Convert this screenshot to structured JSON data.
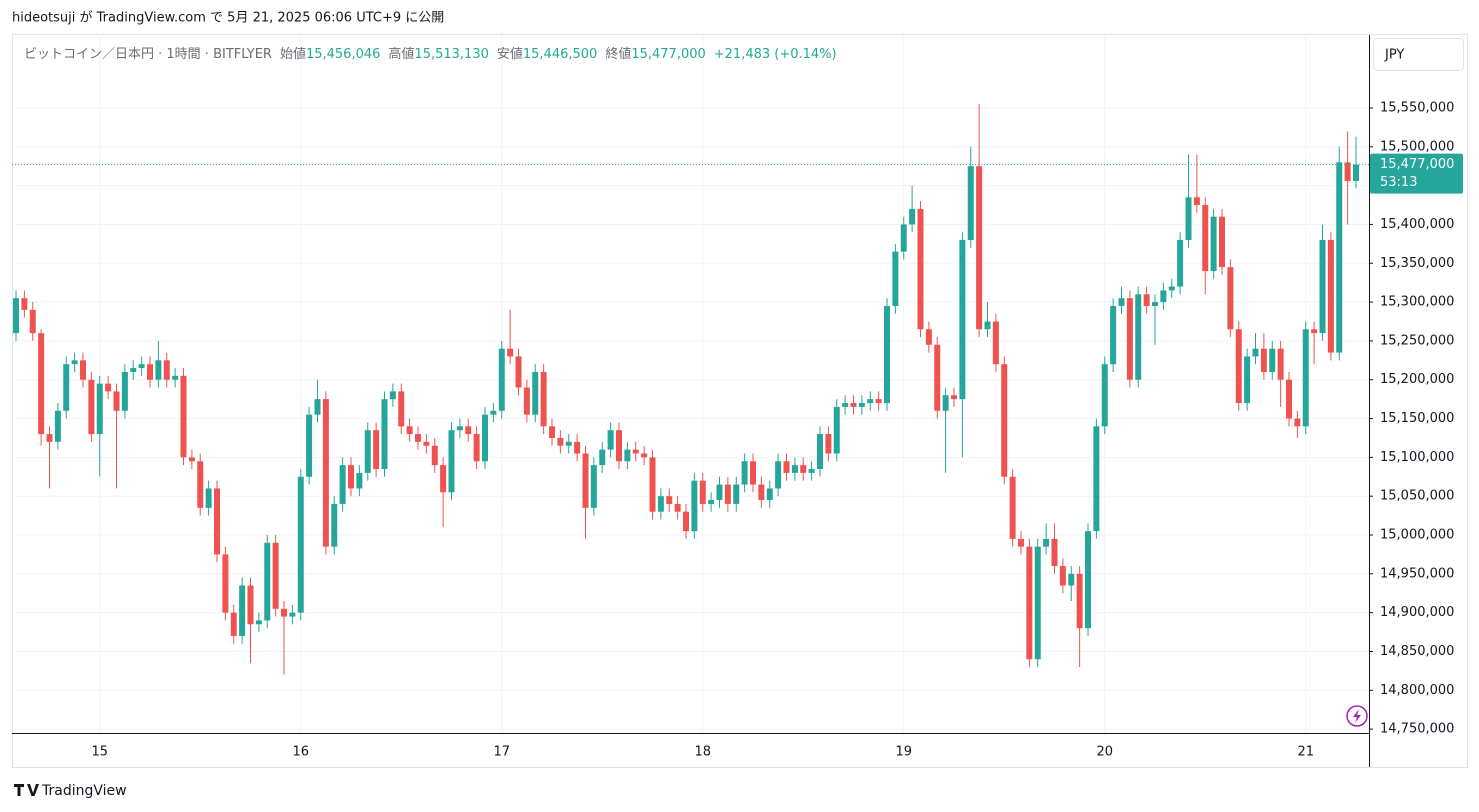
{
  "header": {
    "publisher": "hideotsuji が TradingView.com で 5月 21, 2025 06:06 UTC+9 に公開",
    "footer": "TradingView"
  },
  "chart_data": {
    "type": "candlestick",
    "title": "ビットコイン／日本円 · 1時間 · BITFLYER",
    "ohlc_labels": [
      {
        "label": "始値",
        "value": "15,456,046"
      },
      {
        "label": "高値",
        "value": "15,513,130"
      },
      {
        "label": "安値",
        "value": "15,446,500"
      },
      {
        "label": "終値",
        "value": "15,477,000"
      }
    ],
    "change": "+21,483 (+0.14%)",
    "currency": "JPY",
    "last_price_label": "15,477,000",
    "countdown": "53:13",
    "up_color": "#26a69a",
    "down_color": "#ef5350",
    "grid": true,
    "ylim": [
      14745000,
      15644000
    ],
    "yticks": [
      {
        "value": 14750000,
        "label": "14,750,000"
      },
      {
        "value": 14800000,
        "label": "14,800,000"
      },
      {
        "value": 14850000,
        "label": "14,850,000"
      },
      {
        "value": 14900000,
        "label": "14,900,000"
      },
      {
        "value": 14950000,
        "label": "14,950,000"
      },
      {
        "value": 15000000,
        "label": "15,000,000"
      },
      {
        "value": 15050000,
        "label": "15,050,000"
      },
      {
        "value": 15100000,
        "label": "15,100,000"
      },
      {
        "value": 15150000,
        "label": "15,150,000"
      },
      {
        "value": 15200000,
        "label": "15,200,000"
      },
      {
        "value": 15250000,
        "label": "15,250,000"
      },
      {
        "value": 15300000,
        "label": "15,300,000"
      },
      {
        "value": 15350000,
        "label": "15,350,000"
      },
      {
        "value": 15400000,
        "label": "15,400,000"
      },
      {
        "value": 15450000,
        "label": "15,450,000"
      },
      {
        "value": 15500000,
        "label": "15,500,000"
      },
      {
        "value": 15550000,
        "label": "15,550,000"
      }
    ],
    "xticks": [
      {
        "value": 10,
        "label": "15"
      },
      {
        "value": 34,
        "label": "16"
      },
      {
        "value": 58,
        "label": "17"
      },
      {
        "value": 82,
        "label": "18"
      },
      {
        "value": 106,
        "label": "19"
      },
      {
        "value": 130,
        "label": "20"
      },
      {
        "value": 154,
        "label": "21"
      }
    ],
    "open": [
      15260000,
      15305000,
      15290000,
      15260000,
      15130000,
      15120000,
      15160000,
      15220000,
      15225000,
      15200000,
      15130000,
      15195000,
      15185000,
      15160000,
      15210000,
      15215000,
      15220000,
      15200000,
      15225000,
      15200000,
      15205000,
      15100000,
      15095000,
      15035000,
      15060000,
      14975000,
      14900000,
      14870000,
      14935000,
      14885000,
      14890000,
      14990000,
      14905000,
      14895000,
      14900000,
      15075000,
      15155000,
      15175000,
      14985000,
      15040000,
      15090000,
      15060000,
      15080000,
      15135000,
      15085000,
      15175000,
      15185000,
      15140000,
      15130000,
      15120000,
      15115000,
      15090000,
      15055000,
      15135000,
      15140000,
      15130000,
      15095000,
      15155000,
      15160000,
      15240000,
      15230000,
      15190000,
      15155000,
      15210000,
      15140000,
      15125000,
      15115000,
      15120000,
      15105000,
      15035000,
      15090000,
      15110000,
      15135000,
      15095000,
      15110000,
      15105000,
      15100000,
      15030000,
      15050000,
      15040000,
      15030000,
      15005000,
      15070000,
      15040000,
      15045000,
      15065000,
      15040000,
      15065000,
      15095000,
      15065000,
      15045000,
      15060000,
      15095000,
      15080000,
      15090000,
      15080000,
      15085000,
      15130000,
      15105000,
      15165000,
      15170000,
      15165000,
      15170000,
      15175000,
      15170000,
      15295000,
      15365000,
      15400000,
      15420000,
      15265000,
      15245000,
      15160000,
      15180000,
      15175000,
      15380000,
      15475000,
      15265000,
      15275000,
      15220000,
      15075000,
      14995000,
      14985000,
      14840000,
      14985000,
      14995000,
      14960000,
      14935000,
      14950000,
      14880000,
      15005000,
      15140000,
      15220000,
      15295000,
      15305000,
      15200000,
      15310000,
      15295000,
      15300000,
      15315000,
      15320000,
      15380000,
      15435000,
      15425000,
      15340000,
      15410000,
      15345000,
      15265000,
      15170000,
      15230000,
      15240000,
      15210000,
      15240000,
      15200000,
      15150000,
      15140000,
      15265000,
      15260000,
      15380000,
      15235000,
      15480000,
      15456046
    ],
    "high": [
      15315000,
      15315000,
      15300000,
      15265000,
      15140000,
      15170000,
      15230000,
      15235000,
      15235000,
      15210000,
      15205000,
      15205000,
      15195000,
      15220000,
      15225000,
      15230000,
      15230000,
      15250000,
      15235000,
      15215000,
      15215000,
      15110000,
      15105000,
      15070000,
      15070000,
      14985000,
      14910000,
      14945000,
      14945000,
      14900000,
      15000000,
      15000000,
      14915000,
      14910000,
      15085000,
      15165000,
      15200000,
      15185000,
      15050000,
      15100000,
      15100000,
      15090000,
      15145000,
      15145000,
      15185000,
      15195000,
      15195000,
      15150000,
      15140000,
      15130000,
      15125000,
      15100000,
      15145000,
      15150000,
      15150000,
      15140000,
      15165000,
      15170000,
      15250000,
      15290000,
      15240000,
      15200000,
      15220000,
      15220000,
      15150000,
      15135000,
      15130000,
      15130000,
      15115000,
      15100000,
      15120000,
      15145000,
      15145000,
      15120000,
      15120000,
      15115000,
      15110000,
      15060000,
      15060000,
      15050000,
      15040000,
      15080000,
      15080000,
      15055000,
      15075000,
      15075000,
      15075000,
      15105000,
      15105000,
      15075000,
      15070000,
      15105000,
      15105000,
      15100000,
      15100000,
      15095000,
      15140000,
      15140000,
      15175000,
      15180000,
      15180000,
      15180000,
      15185000,
      15185000,
      15305000,
      15375000,
      15410000,
      15450000,
      15430000,
      15275000,
      15255000,
      15190000,
      15190000,
      15390000,
      15500000,
      15555000,
      15300000,
      15285000,
      15230000,
      15085000,
      15005000,
      14995000,
      14995000,
      15015000,
      15015000,
      14970000,
      14960000,
      14960000,
      15015000,
      15150000,
      15230000,
      15305000,
      15320000,
      15315000,
      15320000,
      15320000,
      15310000,
      15325000,
      15330000,
      15390000,
      15490000,
      15490000,
      15435000,
      15420000,
      15420000,
      15355000,
      15275000,
      15240000,
      15260000,
      15260000,
      15250000,
      15250000,
      15210000,
      15160000,
      15275000,
      15275000,
      15400000,
      15390000,
      15500000,
      15520000,
      15513130
    ],
    "low": [
      15250000,
      15280000,
      15250000,
      15115000,
      15060000,
      15110000,
      15150000,
      15210000,
      15190000,
      15120000,
      15075000,
      15175000,
      15060000,
      15150000,
      15200000,
      15205000,
      15190000,
      15190000,
      15190000,
      15190000,
      15090000,
      15085000,
      15025000,
      15025000,
      14965000,
      14890000,
      14860000,
      14860000,
      14835000,
      14875000,
      14880000,
      14895000,
      14820000,
      14885000,
      14890000,
      15065000,
      15145000,
      14975000,
      14975000,
      15030000,
      15050000,
      15050000,
      15070000,
      15075000,
      15075000,
      15165000,
      15130000,
      15120000,
      15110000,
      15105000,
      15080000,
      15010000,
      15045000,
      15125000,
      15120000,
      15085000,
      15085000,
      15145000,
      15150000,
      15220000,
      15180000,
      15145000,
      15145000,
      15130000,
      15115000,
      15105000,
      15105000,
      15095000,
      14995000,
      15025000,
      15080000,
      15100000,
      15085000,
      15085000,
      15095000,
      15090000,
      15020000,
      15020000,
      15030000,
      15020000,
      14995000,
      14995000,
      15030000,
      15030000,
      15035000,
      15030000,
      15030000,
      15055000,
      15055000,
      15035000,
      15035000,
      15050000,
      15070000,
      15070000,
      15070000,
      15070000,
      15075000,
      15095000,
      15095000,
      15155000,
      15155000,
      15155000,
      15160000,
      15160000,
      15160000,
      15285000,
      15355000,
      15390000,
      15255000,
      15235000,
      15150000,
      15080000,
      15165000,
      15100000,
      15370000,
      15255000,
      15255000,
      15210000,
      15065000,
      14985000,
      14975000,
      14830000,
      14830000,
      14975000,
      14950000,
      14925000,
      14915000,
      14830000,
      14870000,
      14995000,
      15130000,
      15210000,
      15285000,
      15190000,
      15190000,
      15285000,
      15245000,
      15290000,
      15305000,
      15310000,
      15370000,
      15415000,
      15310000,
      15330000,
      15335000,
      15255000,
      15160000,
      15160000,
      15220000,
      15200000,
      15200000,
      15165000,
      15140000,
      15125000,
      15130000,
      15220000,
      15250000,
      15225000,
      15225000,
      15400000,
      15446500
    ],
    "close": [
      15305000,
      15290000,
      15260000,
      15130000,
      15120000,
      15160000,
      15220000,
      15225000,
      15200000,
      15130000,
      15195000,
      15185000,
      15160000,
      15210000,
      15215000,
      15220000,
      15200000,
      15225000,
      15200000,
      15205000,
      15100000,
      15095000,
      15035000,
      15060000,
      14975000,
      14900000,
      14870000,
      14935000,
      14885000,
      14890000,
      14990000,
      14905000,
      14895000,
      14900000,
      15075000,
      15155000,
      15175000,
      14985000,
      15040000,
      15090000,
      15060000,
      15080000,
      15135000,
      15085000,
      15175000,
      15185000,
      15140000,
      15130000,
      15120000,
      15115000,
      15090000,
      15055000,
      15135000,
      15140000,
      15130000,
      15095000,
      15155000,
      15160000,
      15240000,
      15230000,
      15190000,
      15155000,
      15210000,
      15140000,
      15125000,
      15115000,
      15120000,
      15105000,
      15035000,
      15090000,
      15110000,
      15135000,
      15095000,
      15110000,
      15105000,
      15100000,
      15030000,
      15050000,
      15040000,
      15030000,
      15005000,
      15070000,
      15040000,
      15045000,
      15065000,
      15040000,
      15065000,
      15095000,
      15065000,
      15045000,
      15060000,
      15095000,
      15080000,
      15090000,
      15080000,
      15085000,
      15130000,
      15105000,
      15165000,
      15170000,
      15165000,
      15170000,
      15175000,
      15170000,
      15295000,
      15365000,
      15400000,
      15420000,
      15265000,
      15245000,
      15160000,
      15180000,
      15175000,
      15380000,
      15475000,
      15265000,
      15275000,
      15220000,
      15075000,
      14995000,
      14985000,
      14840000,
      14985000,
      14995000,
      14960000,
      14935000,
      14950000,
      14880000,
      15005000,
      15140000,
      15220000,
      15295000,
      15305000,
      15200000,
      15310000,
      15295000,
      15300000,
      15315000,
      15320000,
      15380000,
      15435000,
      15425000,
      15340000,
      15410000,
      15345000,
      15265000,
      15170000,
      15230000,
      15240000,
      15210000,
      15240000,
      15200000,
      15150000,
      15140000,
      15265000,
      15260000,
      15380000,
      15235000,
      15480000,
      15456046,
      15477000
    ]
  }
}
